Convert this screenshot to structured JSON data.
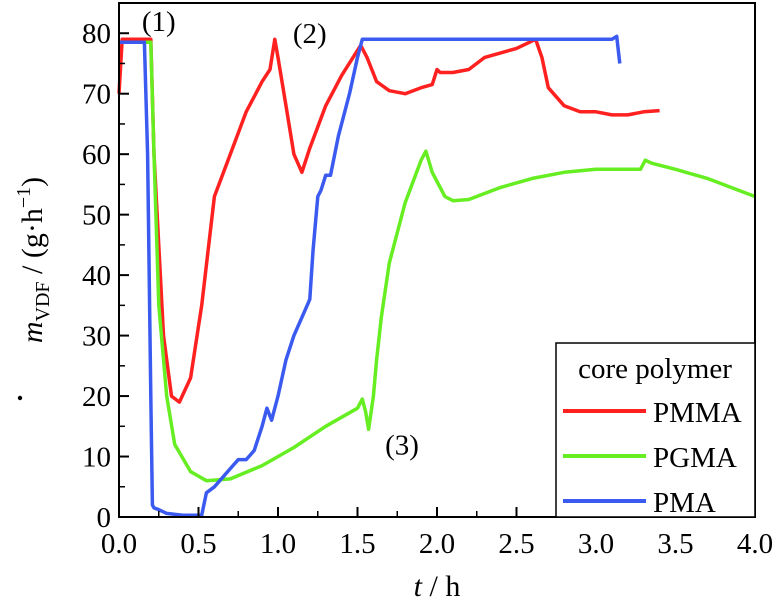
{
  "chart_data": {
    "type": "line",
    "title": "",
    "xlabel": {
      "var": "t",
      "unit": " / h"
    },
    "ylabel": {
      "var": "m",
      "sub": "VDF",
      "unit": " / (g·h",
      "sup": "−1",
      "close": ")"
    },
    "xlim": [
      0,
      4.0
    ],
    "ylim": [
      0,
      85
    ],
    "xticks": [
      0,
      0.5,
      1.0,
      1.5,
      2.0,
      2.5,
      3.0,
      3.5,
      4.0
    ],
    "xtick_labels": [
      "0.0",
      "0.5",
      "1.0",
      "1.5",
      "2.0",
      "2.5",
      "3.0",
      "3.5",
      "4.0"
    ],
    "yticks": [
      0,
      10,
      20,
      30,
      40,
      50,
      60,
      70,
      80
    ],
    "ytick_labels": [
      "0",
      "10",
      "20",
      "30",
      "40",
      "50",
      "60",
      "70",
      "80"
    ],
    "grid": false,
    "legend": {
      "title": "core polymer",
      "placement": "bottom-right"
    },
    "annotations": [
      {
        "text": "(1)",
        "x": 0.25,
        "y": 82
      },
      {
        "text": "(2)",
        "x": 1.2,
        "y": 80
      },
      {
        "text": "(3)",
        "x": 1.78,
        "y": 12
      }
    ],
    "series": [
      {
        "name": "PMMA",
        "color": "#ff2020",
        "points": [
          [
            0,
            70
          ],
          [
            0.02,
            79
          ],
          [
            0.2,
            79
          ],
          [
            0.22,
            60
          ],
          [
            0.28,
            30
          ],
          [
            0.33,
            20
          ],
          [
            0.38,
            19
          ],
          [
            0.45,
            23
          ],
          [
            0.52,
            35
          ],
          [
            0.6,
            53
          ],
          [
            0.7,
            60
          ],
          [
            0.8,
            67
          ],
          [
            0.9,
            72
          ],
          [
            0.95,
            74
          ],
          [
            0.98,
            79
          ],
          [
            1.0,
            76
          ],
          [
            1.05,
            68
          ],
          [
            1.1,
            60
          ],
          [
            1.15,
            57
          ],
          [
            1.2,
            61
          ],
          [
            1.3,
            68
          ],
          [
            1.4,
            73
          ],
          [
            1.52,
            78
          ],
          [
            1.56,
            76
          ],
          [
            1.62,
            72
          ],
          [
            1.7,
            70.5
          ],
          [
            1.8,
            70
          ],
          [
            1.9,
            71
          ],
          [
            1.97,
            71.5
          ],
          [
            2.0,
            74
          ],
          [
            2.02,
            73.5
          ],
          [
            2.1,
            73.5
          ],
          [
            2.2,
            74
          ],
          [
            2.3,
            76
          ],
          [
            2.5,
            77.5
          ],
          [
            2.62,
            79
          ],
          [
            2.66,
            76
          ],
          [
            2.7,
            71
          ],
          [
            2.8,
            68
          ],
          [
            2.9,
            67
          ],
          [
            3.0,
            67
          ],
          [
            3.1,
            66.5
          ],
          [
            3.2,
            66.5
          ],
          [
            3.3,
            67
          ],
          [
            3.4,
            67.2
          ]
        ]
      },
      {
        "name": "PGMA",
        "color": "#66ee22",
        "points": [
          [
            0,
            78.5
          ],
          [
            0.2,
            78.5
          ],
          [
            0.22,
            60
          ],
          [
            0.25,
            35
          ],
          [
            0.3,
            20
          ],
          [
            0.35,
            12
          ],
          [
            0.45,
            7.5
          ],
          [
            0.55,
            6
          ],
          [
            0.7,
            6.3
          ],
          [
            0.9,
            8.5
          ],
          [
            1.1,
            11.5
          ],
          [
            1.3,
            15
          ],
          [
            1.5,
            18
          ],
          [
            1.53,
            19.5
          ],
          [
            1.55,
            17.5
          ],
          [
            1.57,
            14.5
          ],
          [
            1.6,
            20
          ],
          [
            1.62,
            26
          ],
          [
            1.65,
            33
          ],
          [
            1.7,
            42
          ],
          [
            1.8,
            52
          ],
          [
            1.9,
            59
          ],
          [
            1.93,
            60.5
          ],
          [
            1.97,
            57
          ],
          [
            2.05,
            53
          ],
          [
            2.1,
            52.3
          ],
          [
            2.2,
            52.5
          ],
          [
            2.4,
            54.5
          ],
          [
            2.6,
            56
          ],
          [
            2.8,
            57
          ],
          [
            3.0,
            57.5
          ],
          [
            3.28,
            57.5
          ],
          [
            3.31,
            59
          ],
          [
            3.35,
            58.5
          ],
          [
            3.5,
            57.5
          ],
          [
            3.7,
            56
          ],
          [
            3.9,
            54
          ],
          [
            4.0,
            53
          ]
        ]
      },
      {
        "name": "PMA",
        "color": "#3b5bf0",
        "points": [
          [
            0,
            78.5
          ],
          [
            0.16,
            78.5
          ],
          [
            0.18,
            60
          ],
          [
            0.2,
            20
          ],
          [
            0.21,
            2
          ],
          [
            0.22,
            1.5
          ],
          [
            0.25,
            1.2
          ],
          [
            0.3,
            0.6
          ],
          [
            0.4,
            0.3
          ],
          [
            0.52,
            0.3
          ],
          [
            0.55,
            4
          ],
          [
            0.6,
            5
          ],
          [
            0.65,
            6.5
          ],
          [
            0.7,
            8
          ],
          [
            0.75,
            9.5
          ],
          [
            0.8,
            9.5
          ],
          [
            0.85,
            11
          ],
          [
            0.9,
            15
          ],
          [
            0.93,
            18
          ],
          [
            0.96,
            16
          ],
          [
            1.0,
            20
          ],
          [
            1.05,
            26
          ],
          [
            1.1,
            30
          ],
          [
            1.15,
            33
          ],
          [
            1.2,
            36
          ],
          [
            1.22,
            44
          ],
          [
            1.25,
            53
          ],
          [
            1.27,
            54
          ],
          [
            1.3,
            56.5
          ],
          [
            1.33,
            56.5
          ],
          [
            1.38,
            63
          ],
          [
            1.45,
            70
          ],
          [
            1.5,
            76
          ],
          [
            1.53,
            79
          ],
          [
            1.6,
            79
          ],
          [
            3.1,
            79
          ],
          [
            3.13,
            79.5
          ],
          [
            3.15,
            75
          ]
        ]
      }
    ]
  }
}
